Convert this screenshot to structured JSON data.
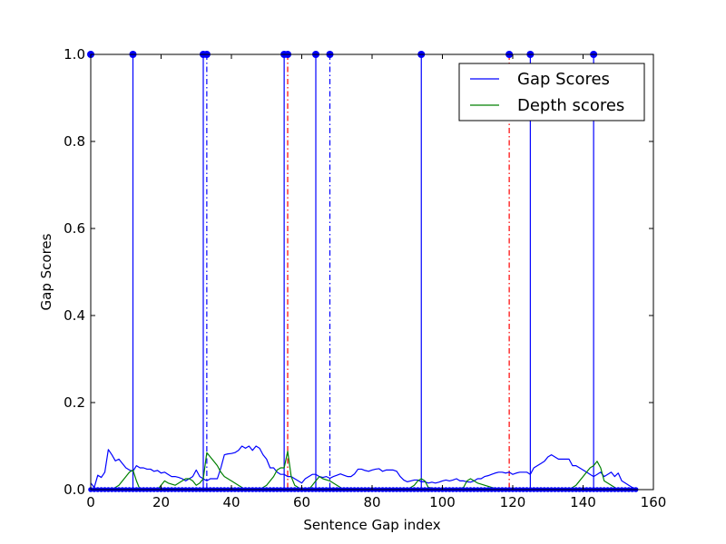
{
  "chart_data": {
    "type": "line",
    "title": "",
    "xlabel": "Sentence Gap index",
    "ylabel": "Gap Scores",
    "xlim": [
      0,
      160
    ],
    "ylim": [
      0,
      1.0
    ],
    "x_ticks": [
      0,
      20,
      40,
      60,
      80,
      100,
      120,
      140,
      160
    ],
    "y_ticks": [
      0.0,
      0.2,
      0.4,
      0.6,
      0.8,
      1.0
    ],
    "x_tick_labels": [
      "0",
      "20",
      "40",
      "60",
      "80",
      "100",
      "120",
      "140",
      "160"
    ],
    "y_tick_labels": [
      "0.0",
      "0.2",
      "0.4",
      "0.6",
      "0.8",
      "1.0"
    ],
    "legend_position": "top-right",
    "grid": false,
    "series": [
      {
        "name": "Gap Scores",
        "color": "#0000ff",
        "x": [
          0,
          1,
          2,
          3,
          4,
          5,
          6,
          7,
          8,
          9,
          10,
          11,
          12,
          13,
          14,
          15,
          16,
          17,
          18,
          19,
          20,
          21,
          22,
          23,
          24,
          25,
          26,
          27,
          28,
          29,
          30,
          31,
          32,
          33,
          34,
          35,
          36,
          37,
          38,
          39,
          40,
          41,
          42,
          43,
          44,
          45,
          46,
          47,
          48,
          49,
          50,
          51,
          52,
          53,
          54,
          55,
          56,
          57,
          58,
          59,
          60,
          61,
          62,
          63,
          64,
          65,
          66,
          67,
          68,
          69,
          70,
          71,
          72,
          73,
          74,
          75,
          76,
          77,
          78,
          79,
          80,
          81,
          82,
          83,
          84,
          85,
          86,
          87,
          88,
          89,
          90,
          91,
          92,
          93,
          94,
          95,
          96,
          97,
          98,
          99,
          100,
          101,
          102,
          103,
          104,
          105,
          106,
          107,
          108,
          109,
          110,
          111,
          112,
          113,
          114,
          115,
          116,
          117,
          118,
          119,
          120,
          121,
          122,
          123,
          124,
          125,
          126,
          127,
          128,
          129,
          130,
          131,
          132,
          133,
          134,
          135,
          136,
          137,
          138,
          139,
          140,
          141,
          142,
          143,
          144,
          145,
          146,
          147,
          148,
          149,
          150,
          151,
          152,
          153,
          154,
          155
        ],
        "y": [
          0.015,
          0.005,
          0.033,
          0.028,
          0.04,
          0.092,
          0.08,
          0.066,
          0.07,
          0.06,
          0.05,
          0.045,
          0.042,
          0.055,
          0.05,
          0.05,
          0.047,
          0.047,
          0.042,
          0.044,
          0.038,
          0.04,
          0.035,
          0.03,
          0.03,
          0.028,
          0.025,
          0.02,
          0.025,
          0.03,
          0.045,
          0.03,
          0.025,
          0.02,
          0.025,
          0.025,
          0.025,
          0.05,
          0.08,
          0.082,
          0.083,
          0.085,
          0.09,
          0.1,
          0.095,
          0.1,
          0.09,
          0.1,
          0.095,
          0.08,
          0.07,
          0.05,
          0.05,
          0.04,
          0.035,
          0.035,
          0.03,
          0.03,
          0.025,
          0.02,
          0.015,
          0.025,
          0.03,
          0.035,
          0.035,
          0.03,
          0.028,
          0.03,
          0.026,
          0.03,
          0.033,
          0.036,
          0.033,
          0.03,
          0.03,
          0.036,
          0.047,
          0.047,
          0.044,
          0.042,
          0.045,
          0.047,
          0.048,
          0.042,
          0.045,
          0.045,
          0.045,
          0.042,
          0.03,
          0.022,
          0.018,
          0.02,
          0.022,
          0.022,
          0.018,
          0.018,
          0.015,
          0.017,
          0.015,
          0.017,
          0.02,
          0.022,
          0.02,
          0.022,
          0.025,
          0.02,
          0.02,
          0.018,
          0.017,
          0.02,
          0.025,
          0.025,
          0.03,
          0.032,
          0.035,
          0.038,
          0.04,
          0.04,
          0.038,
          0.04,
          0.035,
          0.038,
          0.04,
          0.04,
          0.04,
          0.035,
          0.05,
          0.055,
          0.06,
          0.065,
          0.075,
          0.08,
          0.075,
          0.07,
          0.07,
          0.07,
          0.07,
          0.055,
          0.055,
          0.05,
          0.045,
          0.04,
          0.035,
          0.03,
          0.035,
          0.04,
          0.03,
          0.035,
          0.04,
          0.03,
          0.038,
          0.02,
          0.015,
          0.01,
          0.005,
          0.002
        ]
      },
      {
        "name": "Depth scores",
        "color": "#008000",
        "x": [
          0,
          6,
          8,
          10,
          11,
          12,
          13,
          14,
          16,
          18,
          19,
          20,
          21,
          22,
          24,
          26,
          27,
          28,
          29,
          30,
          31,
          32,
          33,
          34,
          35,
          36,
          37,
          38,
          39,
          40,
          42,
          44,
          46,
          48,
          50,
          52,
          53,
          54,
          55,
          56,
          57,
          58,
          60,
          62,
          63,
          64,
          65,
          66,
          68,
          70,
          72,
          74,
          76,
          78,
          80,
          90,
          92,
          93,
          94,
          95,
          96,
          100,
          104,
          106,
          107,
          108,
          110,
          112,
          114,
          116,
          118,
          120,
          122,
          124,
          126,
          128,
          130,
          132,
          134,
          136,
          138,
          140,
          141,
          142,
          143,
          144,
          145,
          146,
          150,
          155
        ],
        "y": [
          0,
          0,
          0.01,
          0.03,
          0.04,
          0.045,
          0.02,
          0,
          0,
          0,
          0,
          0.01,
          0.02,
          0.015,
          0.01,
          0.02,
          0.025,
          0.025,
          0.02,
          0.01,
          0.015,
          0.025,
          0.085,
          0.075,
          0.065,
          0.055,
          0.04,
          0.03,
          0.025,
          0.02,
          0.01,
          0,
          0,
          0,
          0.01,
          0.03,
          0.045,
          0.05,
          0.05,
          0.088,
          0.03,
          0.01,
          0,
          0,
          0.01,
          0.02,
          0.03,
          0.025,
          0.02,
          0.01,
          0,
          0,
          0,
          0,
          0,
          0,
          0.01,
          0.02,
          0.025,
          0.02,
          0.005,
          0,
          0,
          0.005,
          0.02,
          0.025,
          0.015,
          0.01,
          0.005,
          0,
          0,
          0,
          0,
          0,
          0,
          0,
          0,
          0,
          0,
          0,
          0.01,
          0.03,
          0.04,
          0.05,
          0.055,
          0.065,
          0.05,
          0.02,
          0,
          0
        ]
      }
    ],
    "boundaries": {
      "solid_x": [
        12,
        32,
        55,
        64,
        94,
        125,
        143
      ],
      "dashdot_blue_x": [
        33,
        68
      ],
      "dashdot_red_x": [
        56,
        119
      ],
      "top_markers_x": [
        0,
        12,
        32,
        33,
        55,
        56,
        64,
        68,
        94,
        119,
        125,
        143
      ],
      "bottom_markers_x_range": [
        0,
        155
      ]
    }
  }
}
